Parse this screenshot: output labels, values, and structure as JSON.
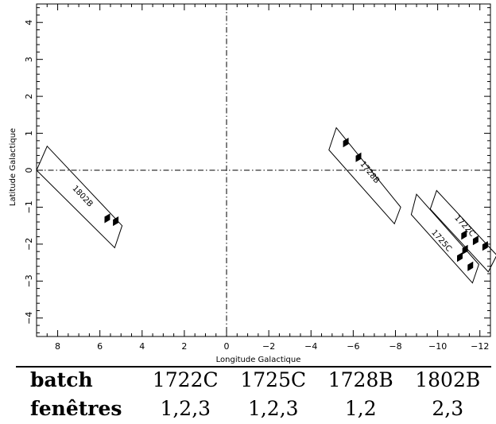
{
  "chart_data": {
    "type": "scatter",
    "xlabel": "Longitude Galactique",
    "ylabel": "Latitude Galactique",
    "xlim": [
      9,
      -12.5
    ],
    "ylim": [
      -4.5,
      4.5
    ],
    "xticks": [
      8,
      6,
      4,
      2,
      0,
      -2,
      -4,
      -6,
      -8,
      -10,
      -12
    ],
    "yticks": [
      4,
      3,
      2,
      1,
      0,
      -1,
      -2,
      -3,
      -4
    ],
    "xtick_labels": [
      "8",
      "6",
      "4",
      "2",
      "0",
      "−2",
      "−4",
      "−6",
      "−8",
      "−10",
      "−12"
    ],
    "ytick_labels": [
      "4",
      "3",
      "2",
      "1",
      "0",
      "−1",
      "−2",
      "−3",
      "−4"
    ],
    "reference_lines": [
      {
        "orientation": "horizontal",
        "value": 0,
        "style": "dash-dot"
      },
      {
        "orientation": "vertical",
        "value": 0,
        "style": "dash-dot"
      }
    ],
    "fields": [
      {
        "name": "1802B",
        "corners": [
          [
            8.5,
            0.65
          ],
          [
            4.95,
            -1.5
          ],
          [
            5.3,
            -2.1
          ],
          [
            9.0,
            0.0
          ]
        ],
        "label_pos": [
          6.9,
          -0.75
        ],
        "points": [
          [
            5.65,
            -1.3
          ],
          [
            5.25,
            -1.38
          ]
        ]
      },
      {
        "name": "1728B",
        "corners": [
          [
            -5.2,
            1.15
          ],
          [
            -8.25,
            -1.0
          ],
          [
            -7.95,
            -1.45
          ],
          [
            -4.85,
            0.55
          ]
        ],
        "label_pos": [
          -6.7,
          -0.1
        ],
        "points": [
          [
            -5.65,
            0.75
          ],
          [
            -6.25,
            0.35
          ]
        ]
      },
      {
        "name": "1725C",
        "corners": [
          [
            -9.0,
            -0.65
          ],
          [
            -11.95,
            -2.55
          ],
          [
            -11.65,
            -3.05
          ],
          [
            -8.75,
            -1.2
          ]
        ],
        "label_pos": [
          -10.1,
          -1.95
        ],
        "points": [
          [
            -11.3,
            -2.15
          ],
          [
            -11.05,
            -2.35
          ],
          [
            -11.55,
            -2.6
          ]
        ]
      },
      {
        "name": "1722C",
        "corners": [
          [
            -9.95,
            -0.55
          ],
          [
            -12.8,
            -2.3
          ],
          [
            -12.4,
            -2.75
          ],
          [
            -9.65,
            -1.05
          ]
        ],
        "label_pos": [
          -11.2,
          -1.55
        ],
        "points": [
          [
            -11.25,
            -1.75
          ],
          [
            -11.8,
            -1.9
          ],
          [
            -12.25,
            -2.05
          ]
        ]
      }
    ]
  },
  "table": {
    "header_label": "batch",
    "row_label": "fenêtres",
    "columns": [
      "1722C",
      "1725C",
      "1728B",
      "1802B"
    ],
    "values": [
      "1,2,3",
      "1,2,3",
      "1,2",
      "2,3"
    ]
  }
}
